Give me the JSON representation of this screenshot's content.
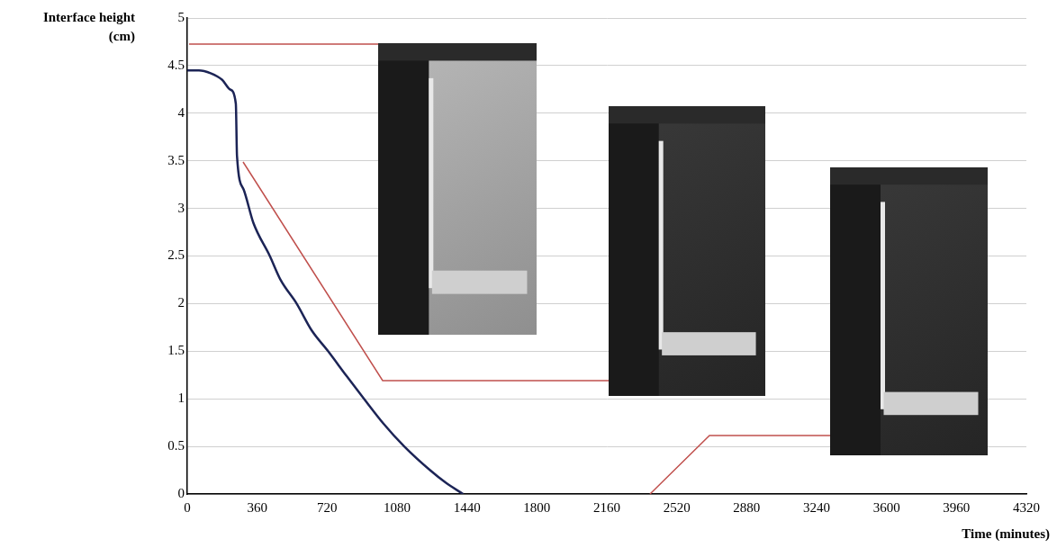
{
  "chart_data": {
    "type": "line",
    "xlabel": "Time (minutes)",
    "ylabel": "Interface height (cm)",
    "x": [
      0,
      60,
      120,
      180,
      220,
      250,
      256,
      290,
      340,
      425,
      480,
      563,
      640,
      725,
      820,
      910,
      1010,
      1117,
      1250,
      1330,
      1420
    ],
    "values": [
      4.45,
      4.45,
      4.42,
      4.35,
      4.25,
      4.1,
      3.55,
      3.2,
      2.85,
      2.5,
      2.25,
      2.0,
      1.72,
      1.5,
      1.24,
      1.0,
      0.74,
      0.5,
      0.25,
      0.12,
      0
    ],
    "color": "#1c2456",
    "xlim": [
      0,
      4320
    ],
    "xticks": [
      0,
      360,
      720,
      1080,
      1440,
      1800,
      2160,
      2520,
      2880,
      3240,
      3600,
      3960,
      4320
    ],
    "ylim": [
      0,
      5
    ],
    "yticks": [
      0,
      0.5,
      1,
      1.5,
      2,
      2.5,
      3,
      3.5,
      4,
      4.5,
      5
    ],
    "grid": true
  }
}
